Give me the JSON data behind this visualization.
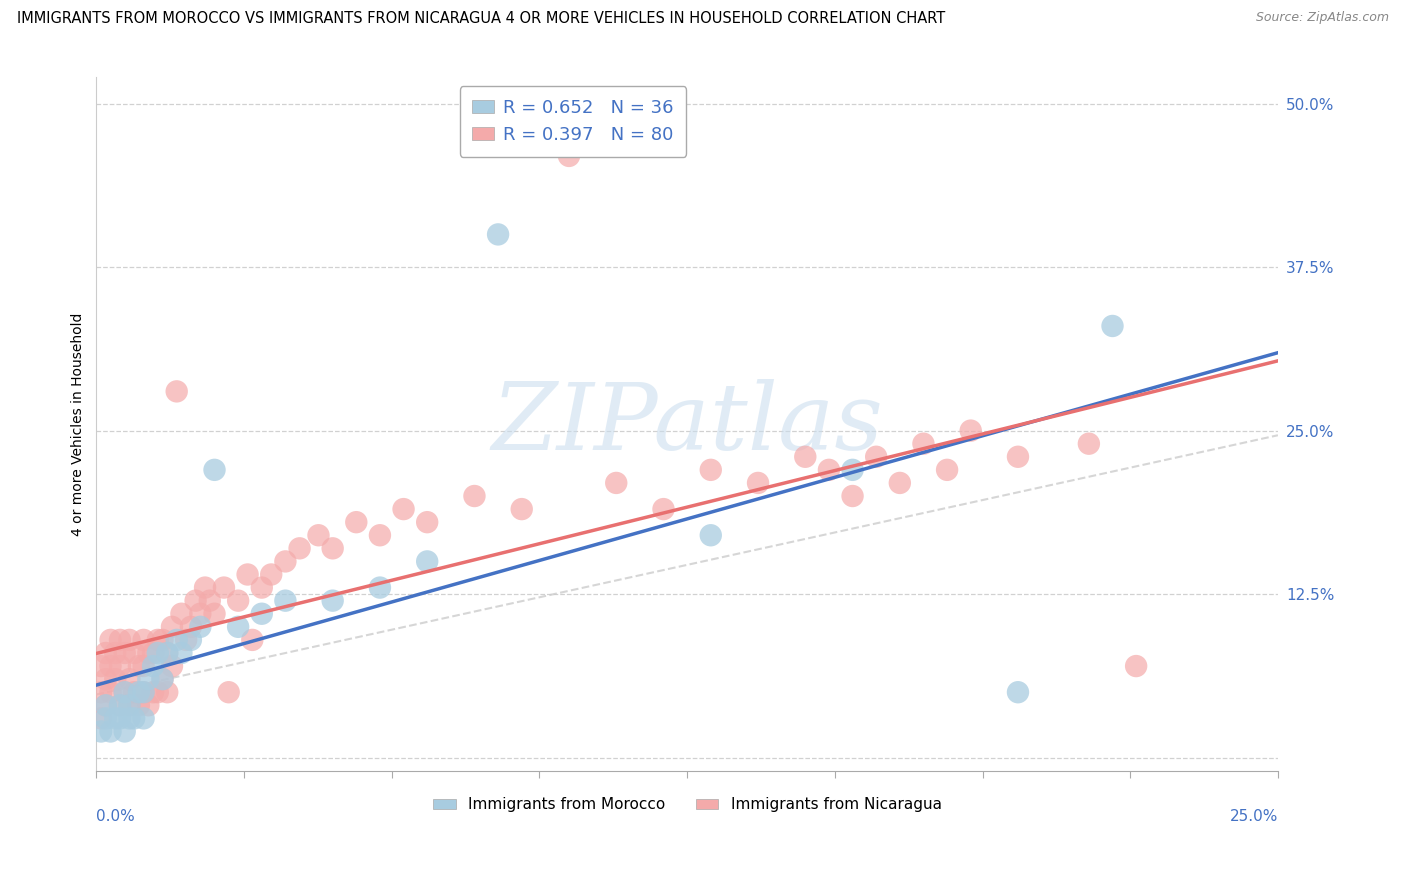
{
  "title": "IMMIGRANTS FROM MOROCCO VS IMMIGRANTS FROM NICARAGUA 4 OR MORE VEHICLES IN HOUSEHOLD CORRELATION CHART",
  "source": "Source: ZipAtlas.com",
  "ylabel": "4 or more Vehicles in Household",
  "xlim": [
    0,
    0.25
  ],
  "ylim": [
    -0.01,
    0.52
  ],
  "yticks": [
    0.0,
    0.125,
    0.25,
    0.375,
    0.5
  ],
  "ytick_labels": [
    "",
    "12.5%",
    "25.0%",
    "37.5%",
    "50.0%"
  ],
  "morocco_R": 0.652,
  "morocco_N": 36,
  "nicaragua_R": 0.397,
  "nicaragua_N": 80,
  "morocco_color": "#a8cce0",
  "nicaragua_color": "#f4aaaa",
  "morocco_line_color": "#4472c4",
  "nicaragua_line_color": "#e87070",
  "watermark_color": "#c8dcee",
  "background_color": "#ffffff",
  "grid_color": "#cccccc",
  "title_fontsize": 10.5,
  "source_fontsize": 9,
  "ylabel_fontsize": 10,
  "legend_fontsize": 12,
  "morocco_x": [
    0.001,
    0.002,
    0.002,
    0.003,
    0.004,
    0.005,
    0.005,
    0.006,
    0.006,
    0.007,
    0.007,
    0.008,
    0.009,
    0.01,
    0.01,
    0.011,
    0.012,
    0.013,
    0.014,
    0.015,
    0.017,
    0.018,
    0.02,
    0.022,
    0.025,
    0.03,
    0.035,
    0.04,
    0.05,
    0.06,
    0.07,
    0.085,
    0.13,
    0.16,
    0.195,
    0.215
  ],
  "morocco_y": [
    0.02,
    0.03,
    0.04,
    0.02,
    0.03,
    0.03,
    0.04,
    0.02,
    0.05,
    0.03,
    0.04,
    0.03,
    0.05,
    0.03,
    0.05,
    0.06,
    0.07,
    0.08,
    0.06,
    0.08,
    0.09,
    0.08,
    0.09,
    0.1,
    0.22,
    0.1,
    0.11,
    0.12,
    0.12,
    0.13,
    0.15,
    0.4,
    0.17,
    0.22,
    0.05,
    0.33
  ],
  "nicaragua_x": [
    0.001,
    0.001,
    0.001,
    0.002,
    0.002,
    0.002,
    0.003,
    0.003,
    0.003,
    0.004,
    0.004,
    0.005,
    0.005,
    0.005,
    0.006,
    0.006,
    0.007,
    0.007,
    0.007,
    0.008,
    0.008,
    0.009,
    0.009,
    0.01,
    0.01,
    0.01,
    0.011,
    0.011,
    0.012,
    0.012,
    0.013,
    0.013,
    0.014,
    0.014,
    0.015,
    0.015,
    0.016,
    0.016,
    0.017,
    0.018,
    0.019,
    0.02,
    0.021,
    0.022,
    0.023,
    0.024,
    0.025,
    0.027,
    0.028,
    0.03,
    0.032,
    0.033,
    0.035,
    0.037,
    0.04,
    0.043,
    0.047,
    0.05,
    0.055,
    0.06,
    0.065,
    0.07,
    0.08,
    0.09,
    0.1,
    0.11,
    0.12,
    0.13,
    0.14,
    0.15,
    0.155,
    0.16,
    0.165,
    0.17,
    0.175,
    0.18,
    0.185,
    0.195,
    0.21,
    0.22
  ],
  "nicaragua_y": [
    0.03,
    0.05,
    0.07,
    0.04,
    0.06,
    0.08,
    0.05,
    0.07,
    0.09,
    0.06,
    0.08,
    0.04,
    0.07,
    0.09,
    0.05,
    0.08,
    0.04,
    0.06,
    0.09,
    0.05,
    0.08,
    0.04,
    0.07,
    0.05,
    0.07,
    0.09,
    0.04,
    0.08,
    0.05,
    0.08,
    0.05,
    0.09,
    0.06,
    0.09,
    0.05,
    0.08,
    0.07,
    0.1,
    0.28,
    0.11,
    0.09,
    0.1,
    0.12,
    0.11,
    0.13,
    0.12,
    0.11,
    0.13,
    0.05,
    0.12,
    0.14,
    0.09,
    0.13,
    0.14,
    0.15,
    0.16,
    0.17,
    0.16,
    0.18,
    0.17,
    0.19,
    0.18,
    0.2,
    0.19,
    0.46,
    0.21,
    0.19,
    0.22,
    0.21,
    0.23,
    0.22,
    0.2,
    0.23,
    0.21,
    0.24,
    0.22,
    0.25,
    0.23,
    0.24,
    0.07
  ]
}
